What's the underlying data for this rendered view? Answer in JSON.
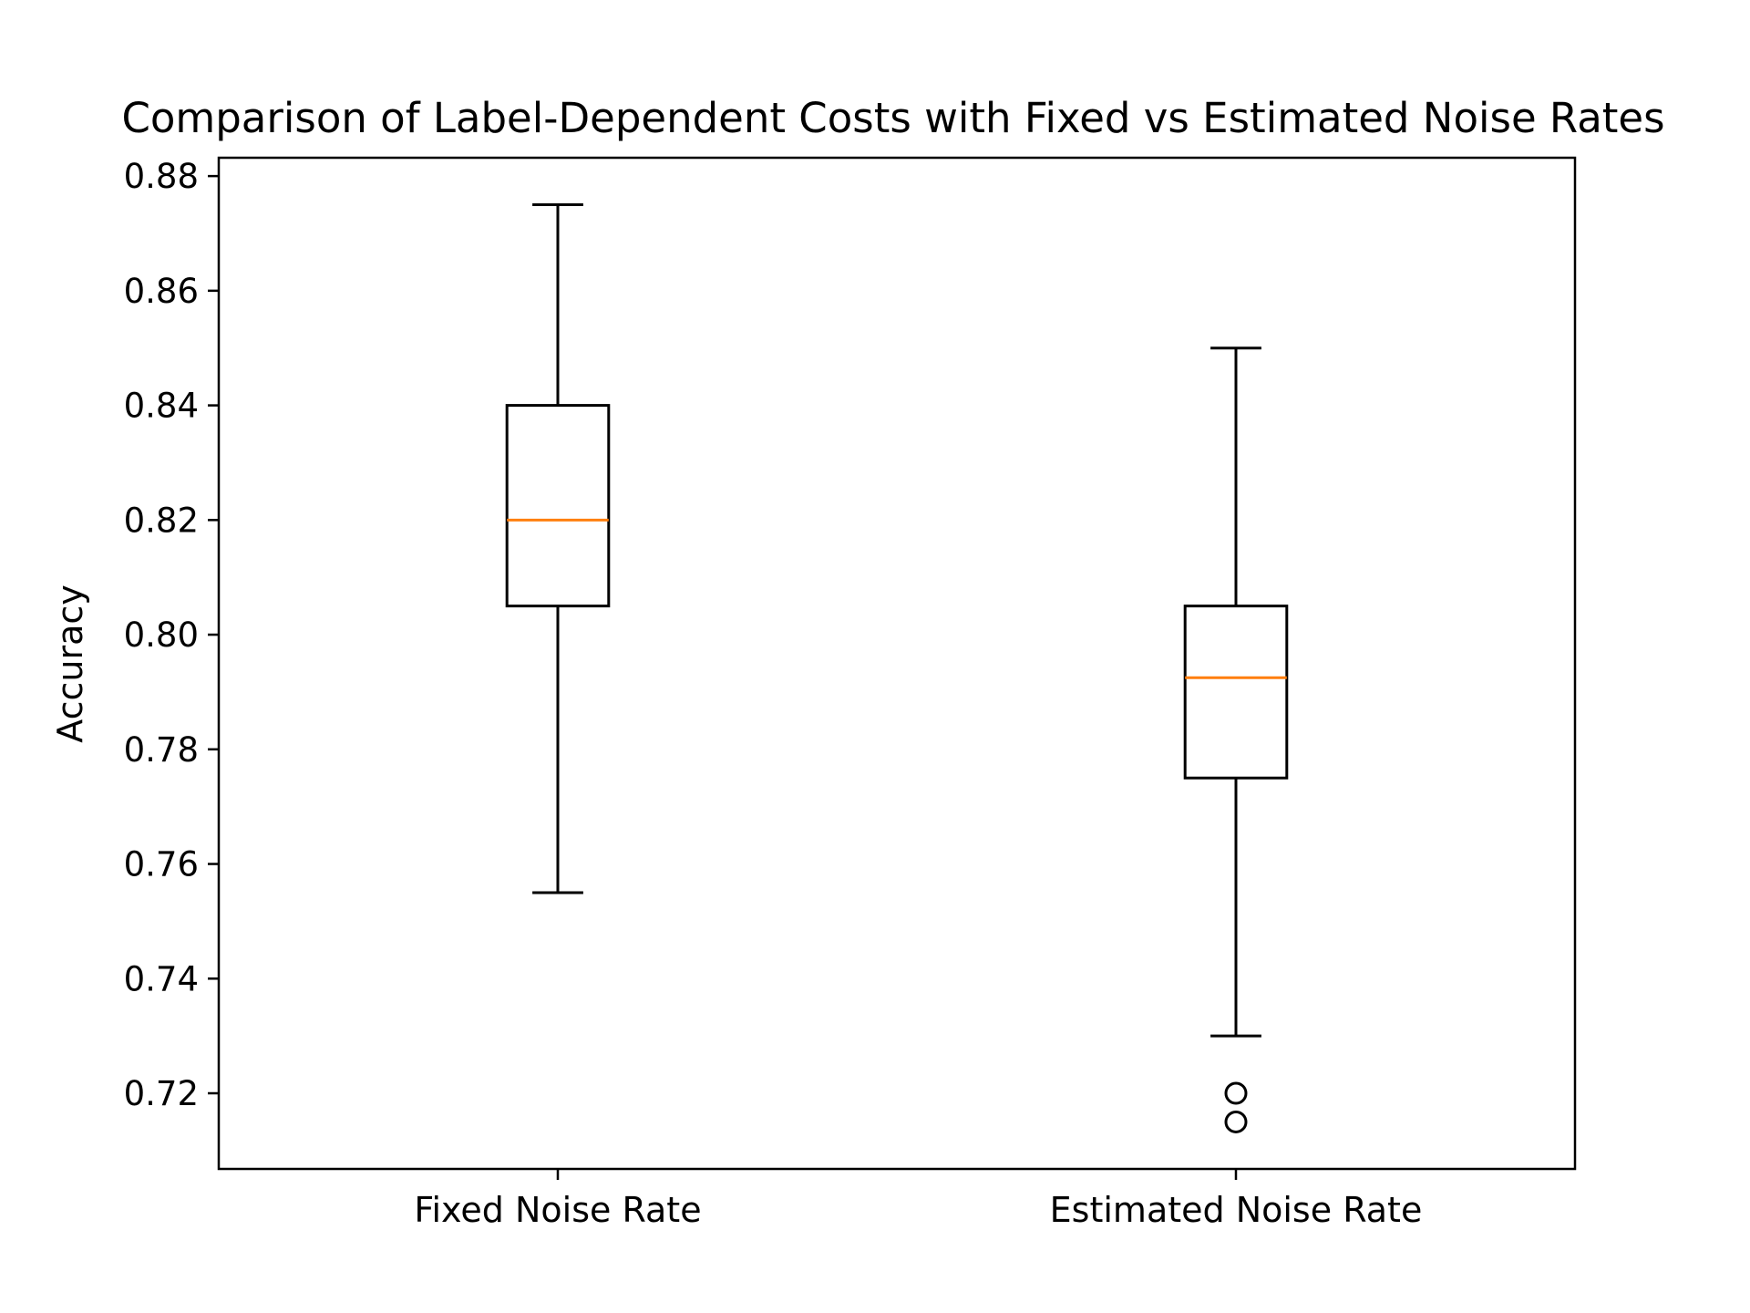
{
  "chart_data": {
    "type": "box",
    "title": "Comparison of Label-Dependent Costs with Fixed vs Estimated Noise Rates",
    "xlabel": "",
    "ylabel": "Accuracy",
    "ylim": [
      0.7068,
      0.8832
    ],
    "yticks": [
      "0.72",
      "0.74",
      "0.76",
      "0.78",
      "0.80",
      "0.82",
      "0.84",
      "0.86",
      "0.88"
    ],
    "grid": false,
    "categories": [
      "Fixed Noise Rate",
      "Estimated Noise Rate"
    ],
    "boxes": [
      {
        "whisker_low": 0.755,
        "q1": 0.805,
        "median": 0.82,
        "q3": 0.84,
        "whisker_high": 0.875,
        "outliers": []
      },
      {
        "whisker_low": 0.73,
        "q1": 0.775,
        "median": 0.7925,
        "q3": 0.805,
        "whisker_high": 0.85,
        "outliers": [
          0.72,
          0.715
        ]
      }
    ],
    "colors": {
      "box": "#000000",
      "median": "#ff7f0e",
      "outlier": "#000000"
    }
  }
}
